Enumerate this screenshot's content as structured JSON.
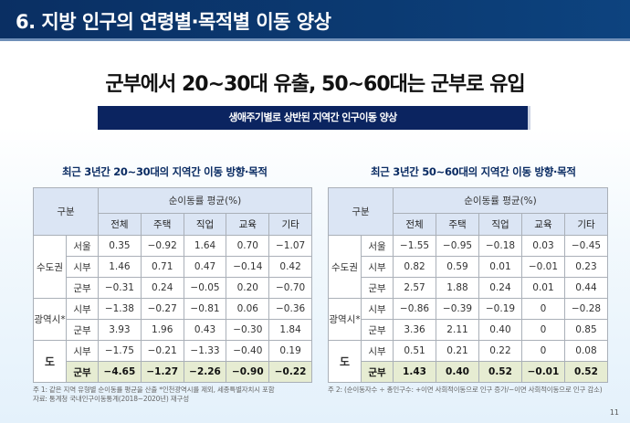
{
  "header": {
    "title": "6. 지방 인구의 연령별·목적별 이동 양상"
  },
  "headline": "군부에서 20~30대 유출, 50~60대는 군부로 유입",
  "banner": "생애주기별로 상반된 지역간 인구이동 양상",
  "tables": [
    {
      "title": "최근 3년간 20~30대의 지역간 이동 방향·목적",
      "corner": "구분",
      "group_header": "순이동률 평균(%)",
      "columns": [
        "전체",
        "주택",
        "직업",
        "교육",
        "기타"
      ],
      "groups": [
        {
          "name": "수도권",
          "rows": [
            {
              "label": "서울",
              "values": [
                "0.35",
                "−0.92",
                "1.64",
                "0.70",
                "−1.07"
              ]
            },
            {
              "label": "시부",
              "values": [
                "1.46",
                "0.71",
                "0.47",
                "−0.14",
                "0.42"
              ]
            },
            {
              "label": "군부",
              "values": [
                "−0.31",
                "0.24",
                "−0.05",
                "0.20",
                "−0.70"
              ]
            }
          ]
        },
        {
          "name": "광역시*",
          "rows": [
            {
              "label": "시부",
              "values": [
                "−1.38",
                "−0.27",
                "−0.81",
                "0.06",
                "−0.36"
              ]
            },
            {
              "label": "군부",
              "values": [
                "3.93",
                "1.96",
                "0.43",
                "−0.30",
                "1.84"
              ]
            }
          ]
        },
        {
          "name": "도",
          "rows": [
            {
              "label": "시부",
              "values": [
                "−1.75",
                "−0.21",
                "−1.33",
                "−0.40",
                "0.19"
              ]
            },
            {
              "label": "군부",
              "values": [
                "−4.65",
                "−1.27",
                "−2.26",
                "−0.90",
                "−0.22"
              ],
              "highlight": true
            }
          ]
        }
      ],
      "notes": [
        "주 1: 같은 지역 유형별 순이동률 평균을 산출 *인천광역시를 제외, 세종특별자치시 포함",
        "자료: 통계청 국내인구이동통계(2018~2020년) 재구성"
      ]
    },
    {
      "title": "최근 3년간 50~60대의 지역간 이동 방향·목적",
      "corner": "구분",
      "group_header": "순이동률 평균(%)",
      "columns": [
        "전체",
        "주택",
        "직업",
        "교육",
        "기타"
      ],
      "groups": [
        {
          "name": "수도권",
          "rows": [
            {
              "label": "서울",
              "values": [
                "−1.55",
                "−0.95",
                "−0.18",
                "0.03",
                "−0.45"
              ]
            },
            {
              "label": "시부",
              "values": [
                "0.82",
                "0.59",
                "0.01",
                "−0.01",
                "0.23"
              ]
            },
            {
              "label": "군부",
              "values": [
                "2.57",
                "1.88",
                "0.24",
                "0.01",
                "0.44"
              ]
            }
          ]
        },
        {
          "name": "광역시*",
          "rows": [
            {
              "label": "시부",
              "values": [
                "−0.86",
                "−0.39",
                "−0.19",
                "0",
                "−0.28"
              ]
            },
            {
              "label": "군부",
              "values": [
                "3.36",
                "2.11",
                "0.40",
                "0",
                "0.85"
              ]
            }
          ]
        },
        {
          "name": "도",
          "rows": [
            {
              "label": "시부",
              "values": [
                "0.51",
                "0.21",
                "0.22",
                "0",
                "0.08"
              ]
            },
            {
              "label": "군부",
              "values": [
                "1.43",
                "0.40",
                "0.52",
                "−0.01",
                "0.52"
              ],
              "highlight": true
            }
          ]
        }
      ],
      "notes": [
        "주 2: (순이동자수 ÷ 총인구수: +이면 사회적이동으로 인구 증가/−이면 사회적이동으로 인구 감소)"
      ]
    }
  ],
  "page_number": "11"
}
